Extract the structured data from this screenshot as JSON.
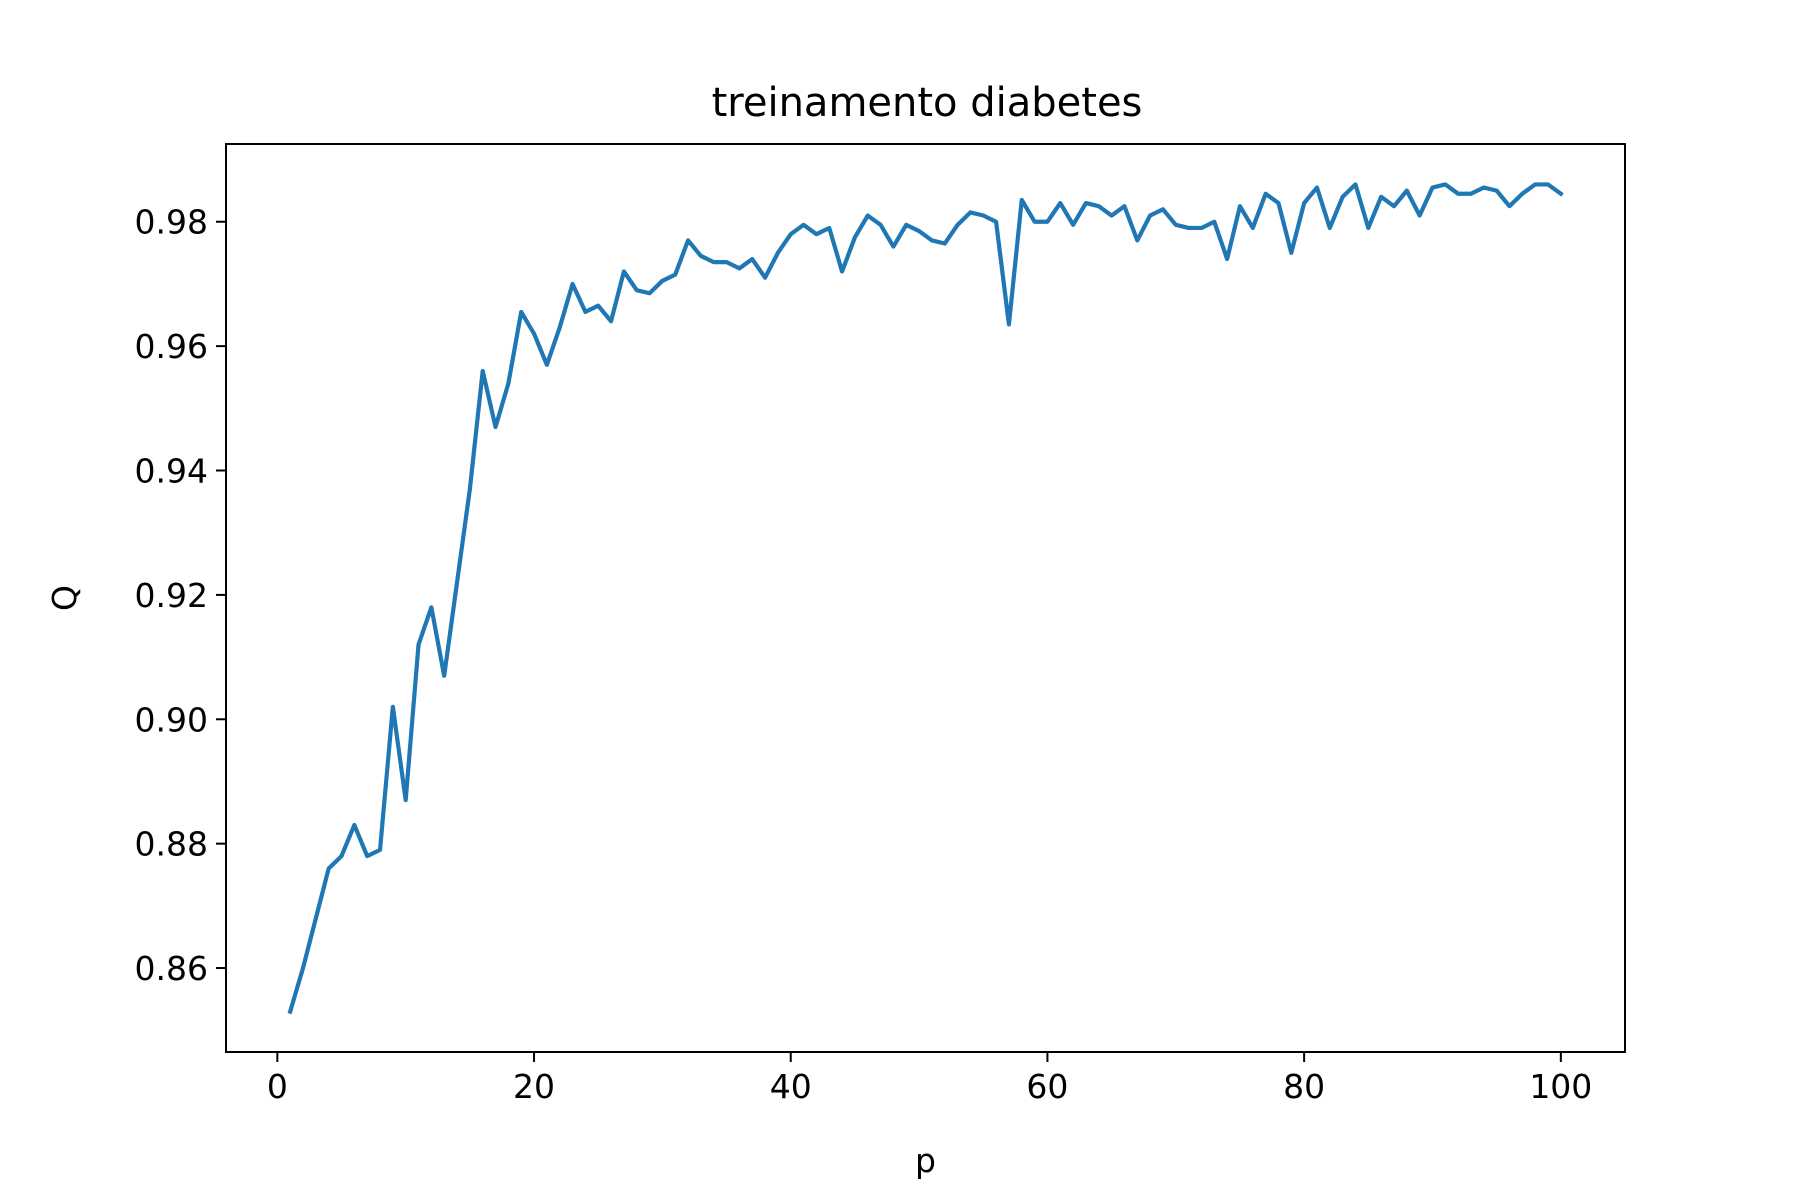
{
  "chart_data": {
    "type": "line",
    "title": "treinamento diabetes",
    "xlabel": "p",
    "ylabel": "Q",
    "xlim": [
      -4,
      105
    ],
    "ylim": [
      0.8465,
      0.9925
    ],
    "xticks": [
      0,
      20,
      40,
      60,
      80,
      100
    ],
    "xtick_labels": [
      "0",
      "20",
      "40",
      "60",
      "80",
      "100"
    ],
    "yticks": [
      0.86,
      0.88,
      0.9,
      0.92,
      0.94,
      0.96,
      0.98
    ],
    "ytick_labels": [
      "0.86",
      "0.88",
      "0.90",
      "0.92",
      "0.94",
      "0.96",
      "0.98"
    ],
    "grid": false,
    "series": [
      {
        "color": "#1f77b4",
        "x": [
          1,
          2,
          3,
          4,
          5,
          6,
          7,
          8,
          9,
          10,
          11,
          12,
          13,
          14,
          15,
          16,
          17,
          18,
          19,
          20,
          21,
          22,
          23,
          24,
          25,
          26,
          27,
          28,
          29,
          30,
          31,
          32,
          33,
          34,
          35,
          36,
          37,
          38,
          39,
          40,
          41,
          42,
          43,
          44,
          45,
          46,
          47,
          48,
          49,
          50,
          51,
          52,
          53,
          54,
          55,
          56,
          57,
          58,
          59,
          60,
          61,
          62,
          63,
          64,
          65,
          66,
          67,
          68,
          69,
          70,
          71,
          72,
          73,
          74,
          75,
          76,
          77,
          78,
          79,
          80,
          81,
          82,
          83,
          84,
          85,
          86,
          87,
          88,
          89,
          90,
          91,
          92,
          93,
          94,
          95,
          96,
          97,
          98,
          99,
          100
        ],
        "values": [
          0.853,
          0.86,
          0.868,
          0.876,
          0.878,
          0.883,
          0.878,
          0.879,
          0.902,
          0.887,
          0.912,
          0.918,
          0.907,
          0.922,
          0.937,
          0.956,
          0.947,
          0.954,
          0.9655,
          0.962,
          0.957,
          0.963,
          0.97,
          0.9655,
          0.9665,
          0.964,
          0.972,
          0.969,
          0.9685,
          0.9705,
          0.9715,
          0.977,
          0.9745,
          0.9735,
          0.9735,
          0.9725,
          0.974,
          0.971,
          0.975,
          0.978,
          0.9795,
          0.978,
          0.979,
          0.972,
          0.9775,
          0.981,
          0.9795,
          0.976,
          0.9795,
          0.9785,
          0.977,
          0.9765,
          0.9795,
          0.9815,
          0.981,
          0.98,
          0.9635,
          0.9835,
          0.98,
          0.98,
          0.983,
          0.9795,
          0.983,
          0.9825,
          0.981,
          0.9825,
          0.977,
          0.981,
          0.982,
          0.9795,
          0.979,
          0.979,
          0.98,
          0.974,
          0.9825,
          0.979,
          0.9845,
          0.983,
          0.975,
          0.983,
          0.9855,
          0.979,
          0.984,
          0.986,
          0.979,
          0.984,
          0.9825,
          0.985,
          0.981,
          0.9855,
          0.986,
          0.9845,
          0.9845,
          0.9855,
          0.985,
          0.9825,
          0.9845,
          0.986,
          0.986,
          0.9845
        ]
      }
    ]
  }
}
